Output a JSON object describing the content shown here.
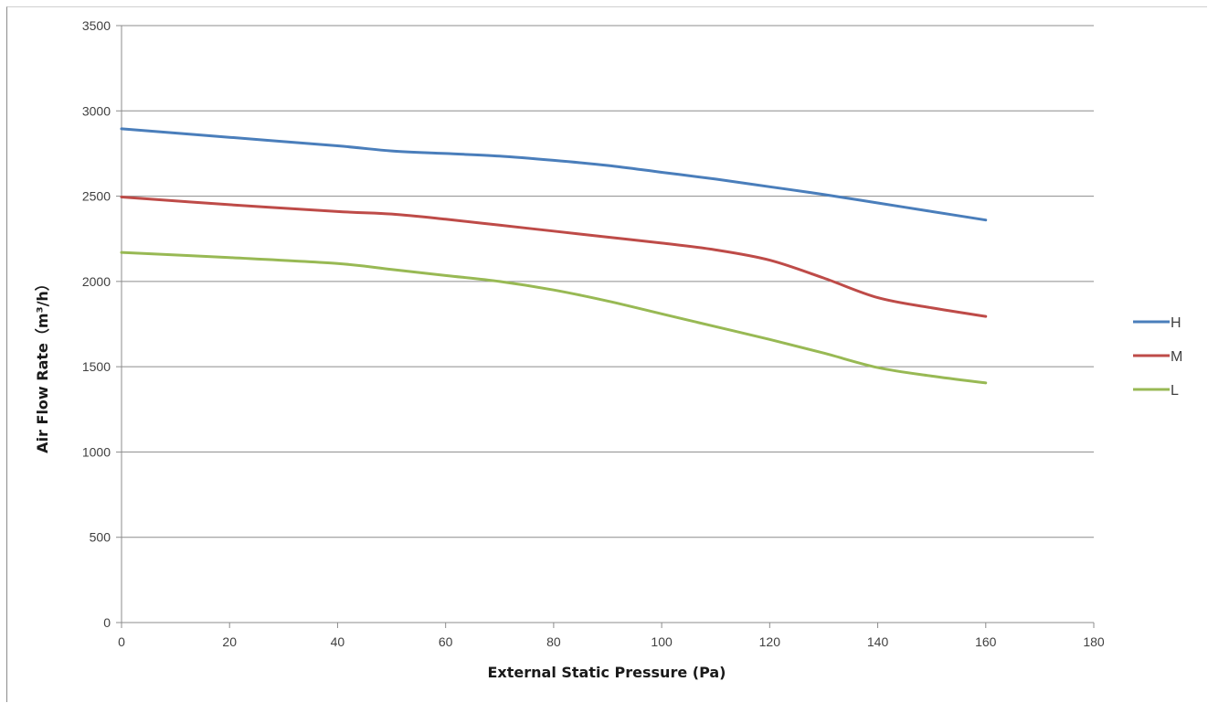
{
  "chart_data": {
    "type": "line",
    "title": "",
    "xlabel": "External Static Pressure (Pa)",
    "ylabel": "Air Flow Rate（m³/h）",
    "xlim": [
      0,
      180
    ],
    "ylim": [
      0,
      3500
    ],
    "x_ticks": [
      0,
      20,
      40,
      60,
      80,
      100,
      120,
      140,
      160,
      180
    ],
    "y_ticks": [
      0,
      500,
      1000,
      1500,
      2000,
      2500,
      3000,
      3500
    ],
    "grid": "horizontal",
    "legend_position": "right",
    "x": [
      0,
      20,
      40,
      50,
      60,
      70,
      80,
      90,
      100,
      110,
      120,
      130,
      140,
      150,
      160
    ],
    "series": [
      {
        "name": "H",
        "color": "#4a7ebb",
        "values": [
          2895,
          2845,
          2795,
          2765,
          2750,
          2735,
          2710,
          2680,
          2640,
          2600,
          2555,
          2510,
          2460,
          2410,
          2360
        ]
      },
      {
        "name": "M",
        "color": "#be4b48",
        "values": [
          2495,
          2450,
          2410,
          2395,
          2365,
          2330,
          2295,
          2260,
          2225,
          2185,
          2125,
          2020,
          1905,
          1845,
          1795
        ]
      },
      {
        "name": "L",
        "color": "#98b954",
        "values": [
          2170,
          2140,
          2105,
          2070,
          2035,
          2000,
          1950,
          1885,
          1810,
          1735,
          1660,
          1580,
          1495,
          1445,
          1405
        ]
      }
    ]
  }
}
